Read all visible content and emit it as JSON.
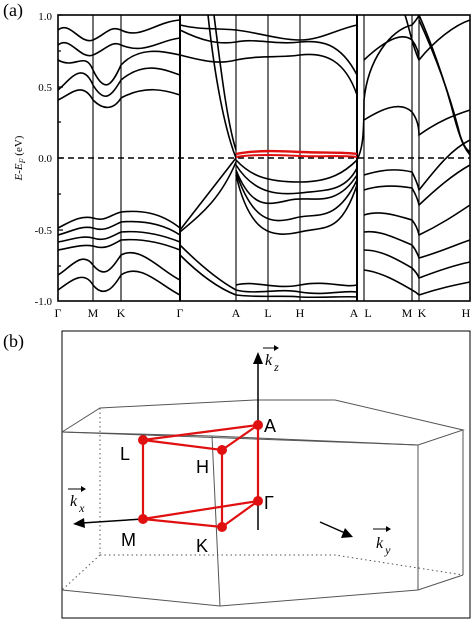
{
  "panel_a": {
    "label": "(a)",
    "ylabel_main": "E-E",
    "ylabel_sub": "F",
    "ylabel_unit": " (eV)",
    "yticks": [
      "1.0",
      "0.5",
      "0.0",
      "-0.5",
      "-1.0"
    ],
    "kpath_labels": [
      "Γ",
      "M",
      "K",
      "Γ",
      "A",
      "L",
      "H",
      "A",
      "L",
      "M",
      "K",
      "H"
    ],
    "fermi_line_style": "dashed",
    "highlight_color": "#e01010"
  },
  "panel_b": {
    "label": "(b)",
    "points": {
      "A": "A",
      "L": "L",
      "H": "H",
      "Gamma": "Γ",
      "M": "M",
      "K": "K"
    },
    "axes": {
      "kz": "k",
      "kz_sub": "z",
      "kx": "k",
      "kx_sub": "x",
      "ky": "k",
      "ky_sub": "y"
    },
    "path_color": "#e01010"
  },
  "chart_data": {
    "type": "line",
    "title": "",
    "xlabel": "",
    "ylabel": "E-EF (eV)",
    "ylim": [
      -1.0,
      1.0
    ],
    "categories": [
      "Γ",
      "M",
      "K",
      "Γ",
      "A",
      "L",
      "H",
      "A",
      "L",
      "M",
      "K",
      "H"
    ],
    "series": [
      {
        "values": [
          -0.47,
          -0.5,
          -0.55,
          -0.47,
          -0.08,
          -0.1,
          -0.06,
          -0.08,
          -0.47,
          -0.5,
          -0.55,
          -0.47
        ]
      },
      {
        "values": [
          -0.52,
          -0.55,
          -0.58,
          -0.52,
          0.04,
          0.03,
          0.03,
          0.04,
          -0.52,
          -0.55,
          -0.58,
          -0.52
        ]
      },
      {
        "values": [
          -0.72,
          -0.7,
          -0.65,
          -0.72,
          -0.27,
          -0.3,
          -0.28,
          -0.27,
          -0.72,
          -0.7,
          -0.65,
          -0.72
        ]
      },
      {
        "values": [
          0.88,
          0.55,
          0.4,
          0.88,
          0.85,
          0.82,
          0.8,
          0.85,
          0.88,
          0.55,
          0.4,
          0.88
        ]
      },
      {
        "values": [
          -0.9,
          -0.85,
          -0.8,
          -0.9,
          -0.5,
          -0.55,
          -0.52,
          -0.5,
          -0.9,
          -0.85,
          -0.8,
          -0.9
        ]
      }
    ],
    "highlight_band": {
      "segment": "A-L-H-A",
      "energy": 0.02
    }
  }
}
